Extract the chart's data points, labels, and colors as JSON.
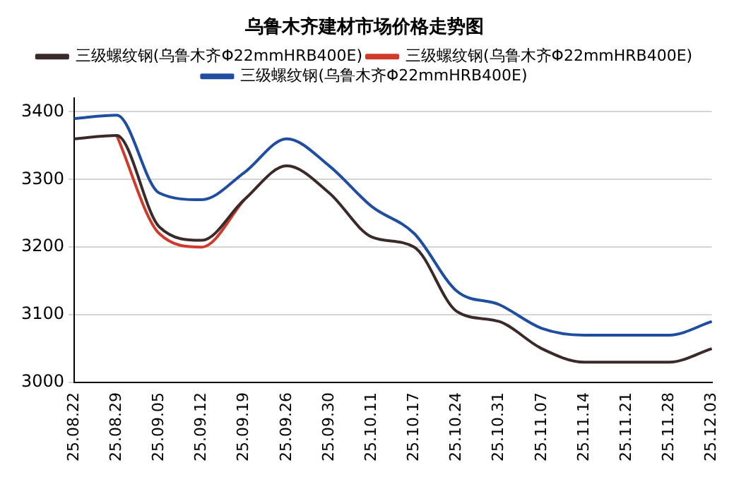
{
  "chart_data": {
    "type": "line",
    "title": "乌鲁木齐建材市场价格走势图",
    "categories": [
      "25.08.22",
      "25.08.29",
      "25.09.05",
      "25.09.12",
      "25.09.19",
      "25.09.26",
      "25.09.30",
      "25.10.11",
      "25.10.17",
      "25.10.24",
      "25.10.31",
      "25.11.07",
      "25.11.14",
      "25.11.21",
      "25.11.28",
      "25.12.03"
    ],
    "series": [
      {
        "name": "三级螺纹钢(乌鲁木齐Φ22mmHRB400E)",
        "color": "#3a2a2a",
        "values": [
          3360,
          3365,
          3230,
          3210,
          3270,
          3320,
          3280,
          3215,
          3200,
          3105,
          3090,
          3050,
          3030,
          3030,
          3030,
          3050
        ]
      },
      {
        "name": "三级螺纹钢(乌鲁木齐Φ22mmHRB400E)",
        "color": "#d03a2a",
        "values": [
          null,
          3365,
          3220,
          3200,
          3270,
          null,
          null,
          null,
          null,
          null,
          null,
          null,
          null,
          null,
          null,
          null
        ]
      },
      {
        "name": "三级螺纹钢(乌鲁木齐Φ22mmHRB400E)",
        "color": "#1f4ea0",
        "values": [
          3390,
          3395,
          3280,
          3270,
          3310,
          3360,
          3320,
          3260,
          3220,
          3135,
          3115,
          3080,
          3070,
          3070,
          3070,
          3090
        ]
      }
    ],
    "ylim": [
      3000,
      3420
    ],
    "yticks": [
      3000,
      3100,
      3200,
      3300,
      3400
    ],
    "grid": "y",
    "legend": "top",
    "marker": "none",
    "line_style": "solid"
  }
}
